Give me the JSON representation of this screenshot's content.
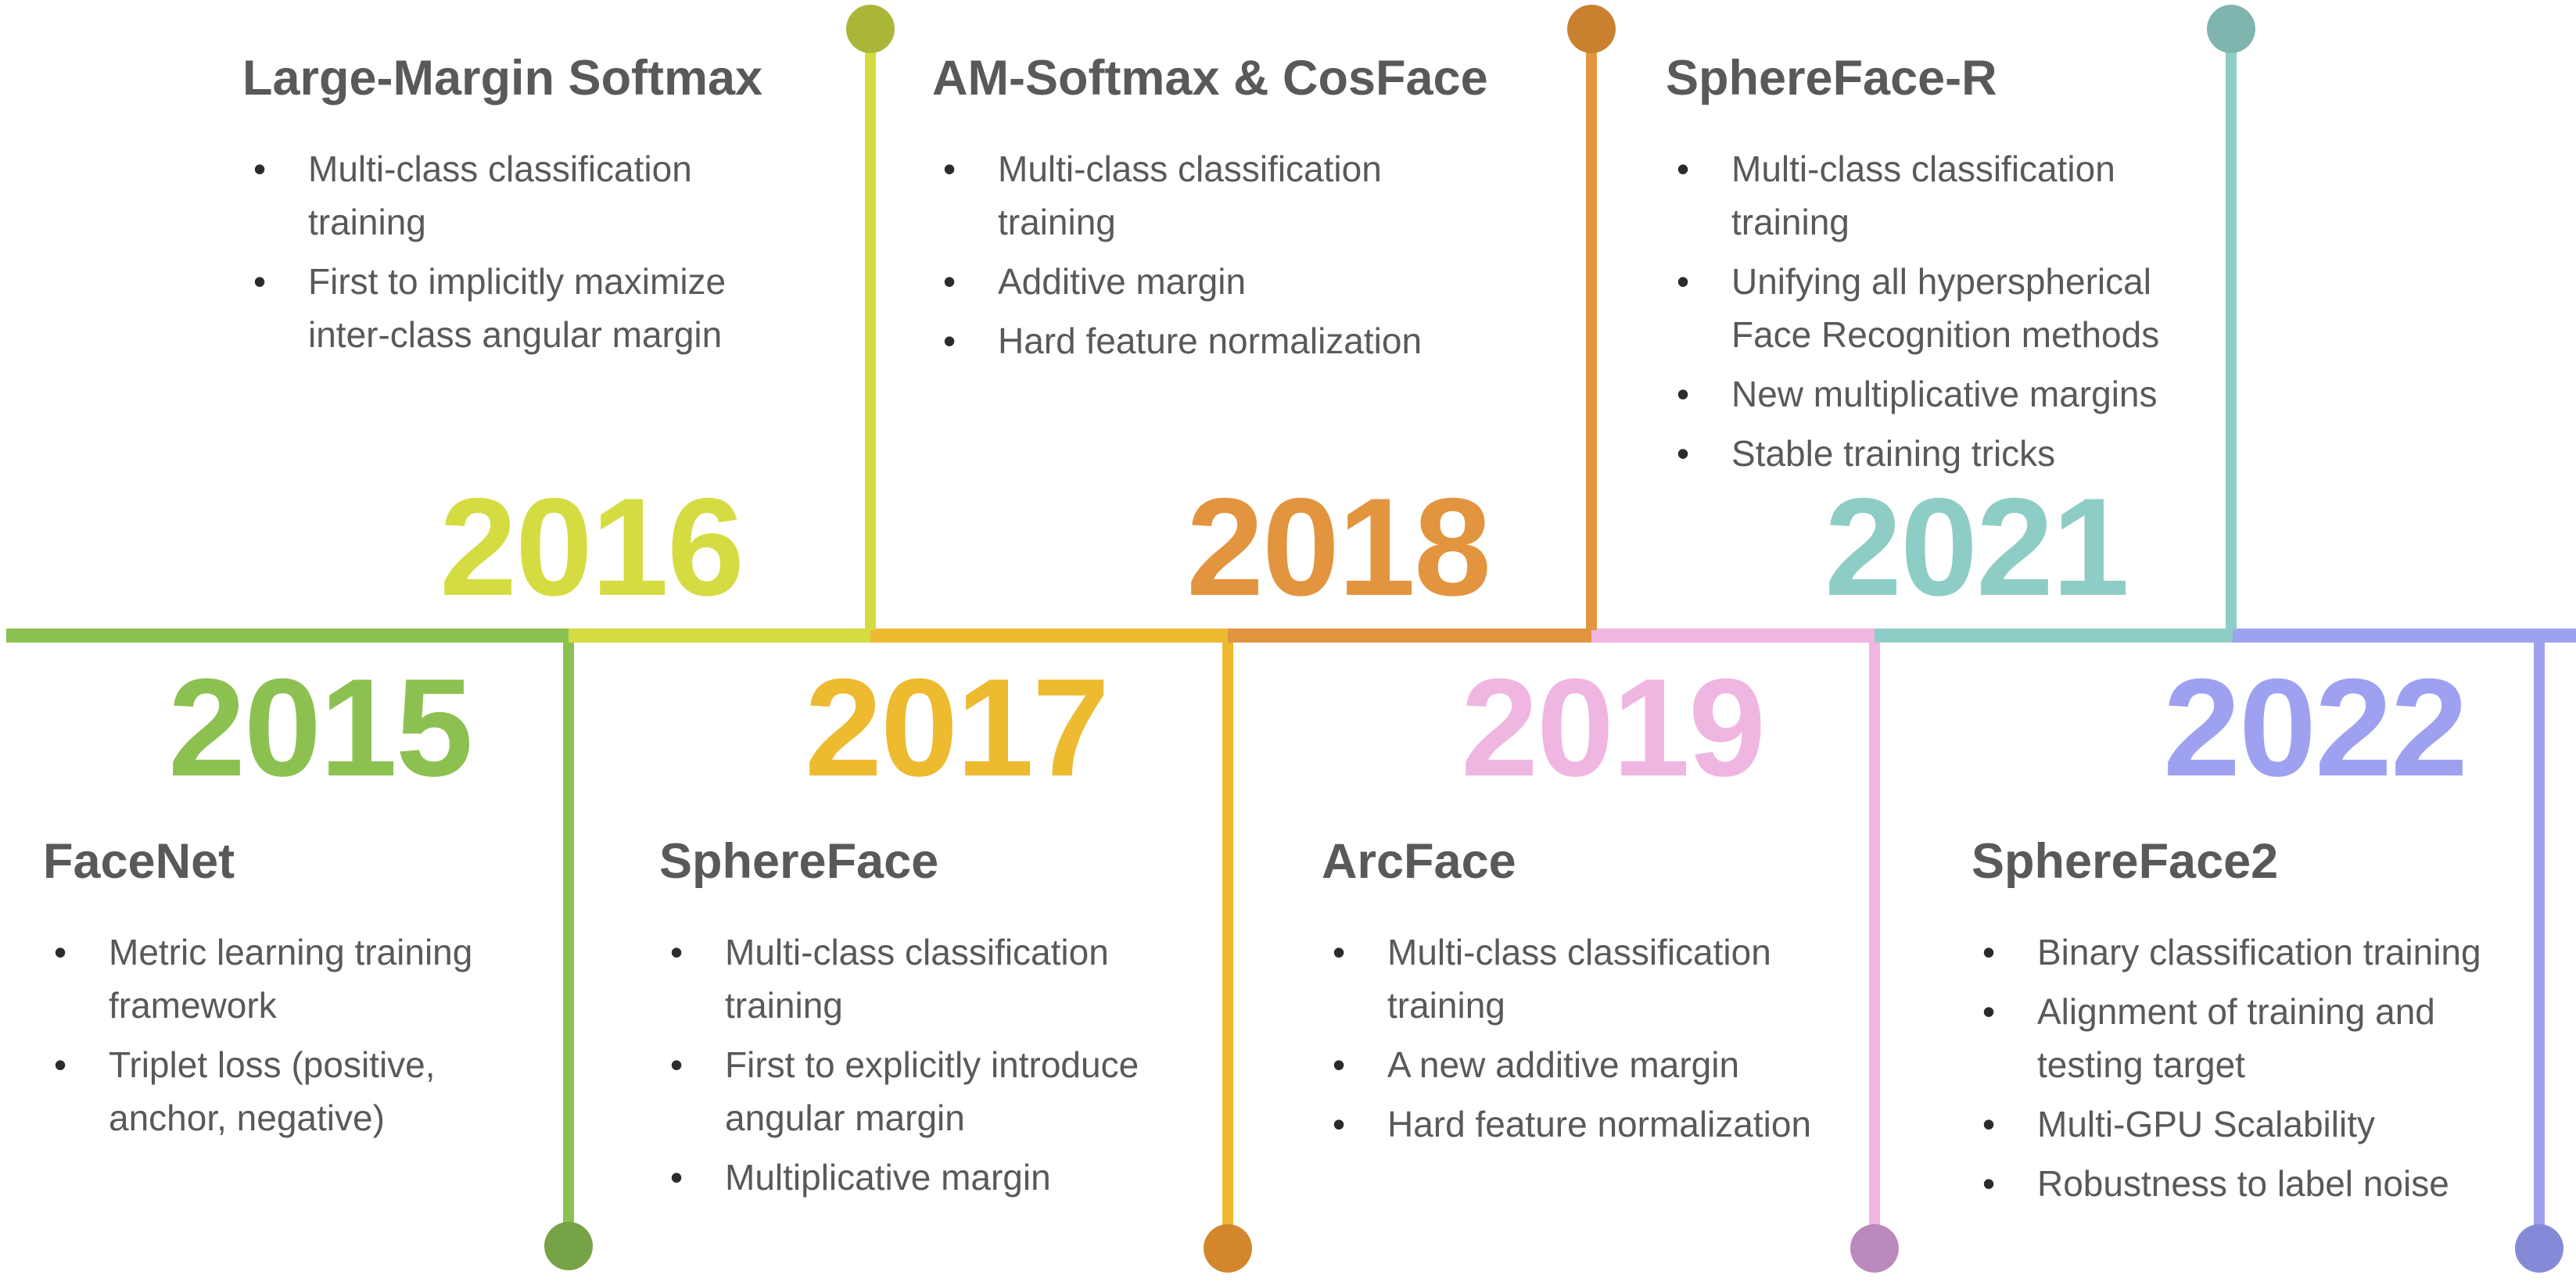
{
  "page": {
    "background": "#ffffff",
    "text_color": "#595959",
    "bullet_marker": "•",
    "description": "Timeline of hyperspherical face recognition methods 2015-2022"
  },
  "years": [
    {
      "label": "2015",
      "side": "below",
      "color": "#8CC152",
      "dot_color": "#76A346",
      "title": "FaceNet",
      "bullets": [
        "Metric learning training\nframework",
        "Triplet loss (positive,\nanchor, negative)"
      ]
    },
    {
      "label": "2016",
      "side": "above",
      "color": "#D5DC42",
      "dot_color": "#A9B637",
      "title": "Large-Margin Softmax",
      "bullets": [
        "Multi-class classification\ntraining",
        "First to implicitly maximize\ninter-class angular margin"
      ]
    },
    {
      "label": "2017",
      "side": "below",
      "color": "#EDBA30",
      "dot_color": "#D3862B",
      "title": "SphereFace",
      "bullets": [
        "Multi-class classification\ntraining",
        "First to explicitly introduce\nangular margin",
        "Multiplicative margin"
      ]
    },
    {
      "label": "2018",
      "side": "above",
      "color": "#E3943E",
      "dot_color": "#C98130",
      "title": "AM-Softmax & CosFace",
      "bullets": [
        "Multi-class classification\ntraining",
        "Additive margin",
        "Hard feature normalization"
      ]
    },
    {
      "label": "2019",
      "side": "below",
      "color": "#EFB6E2",
      "dot_color": "#BB8ABD",
      "title": "ArcFace",
      "bullets": [
        "Multi-class classification\ntraining",
        "A new additive margin",
        "Hard feature normalization"
      ]
    },
    {
      "label": "2021",
      "side": "above",
      "color": "#8ECDC5",
      "dot_color": "#7FB5AE",
      "title": "SphereFace-R",
      "bullets": [
        "Multi-class classification\ntraining",
        "Unifying all hyperspherical\nFace Recognition methods",
        "New multiplicative margins",
        "Stable training tricks"
      ]
    },
    {
      "label": "2022",
      "side": "below",
      "color": "#9EA1F0",
      "dot_color": "#8489D8",
      "title": "SphereFace2",
      "bullets": [
        "Binary classification training",
        "Alignment of training and\ntesting target",
        "Multi-GPU Scalability",
        "Robustness to label noise"
      ]
    }
  ]
}
